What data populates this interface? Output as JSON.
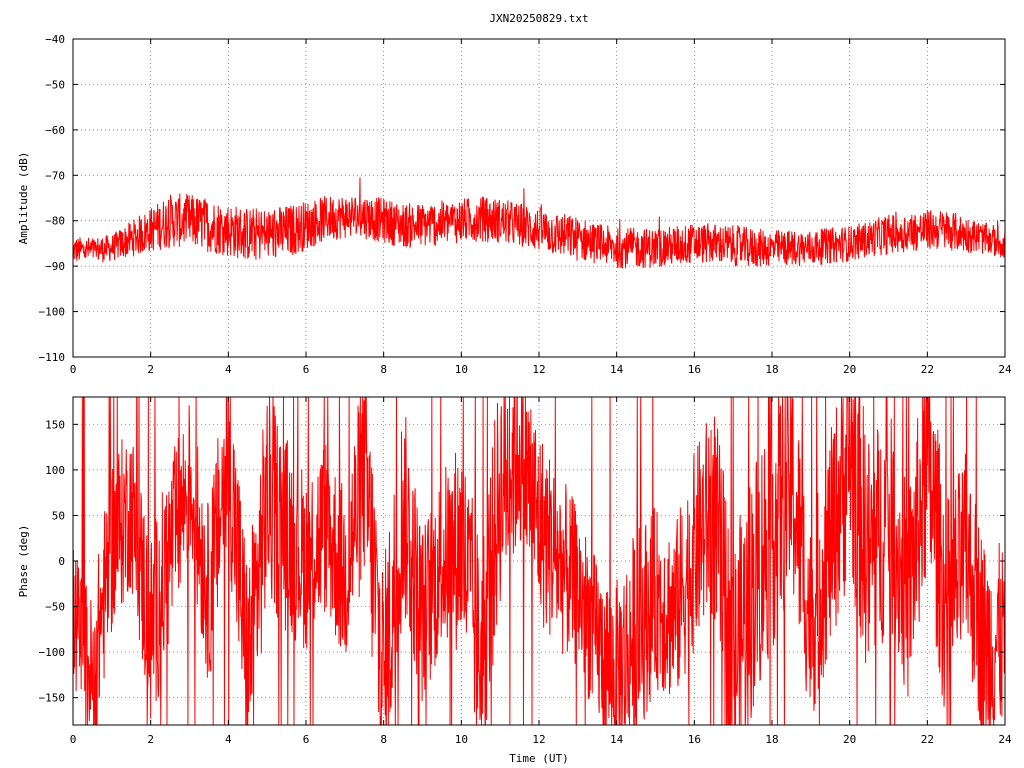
{
  "chart_data": [
    {
      "type": "line",
      "title": "JXN20250829.txt",
      "xlabel": "",
      "ylabel": "Amplitude (dB)",
      "xlim": [
        0,
        24
      ],
      "ylim": [
        -110,
        -40
      ],
      "x_ticks": [
        "0",
        "2",
        "4",
        "6",
        "8",
        "10",
        "12",
        "14",
        "16",
        "18",
        "20",
        "22",
        "24"
      ],
      "y_ticks": [
        "-40",
        "-50",
        "-60",
        "-70",
        "-80",
        "-90",
        "-100",
        "-110"
      ],
      "grid": true,
      "color": "#ff0000",
      "series": [
        {
          "x": [
            0,
            0.5,
            1,
            1.5,
            2,
            2.5,
            3,
            3.5,
            4,
            4.5,
            5,
            5.5,
            6,
            6.5,
            7,
            7.5,
            8,
            8.5,
            9,
            9.5,
            10,
            10.5,
            11,
            11.5,
            12,
            12.5,
            13,
            13.5,
            14,
            14.5,
            15,
            15.5,
            16,
            16.5,
            17,
            17.5,
            18,
            18.5,
            19,
            19.5,
            20,
            20.5,
            21,
            21.5,
            22,
            22.5,
            23,
            23.5,
            24
          ],
          "y": [
            -86.5,
            -86.5,
            -86,
            -84,
            -82,
            -80,
            -80,
            -81,
            -82,
            -83,
            -83,
            -82.5,
            -81,
            -79.5,
            -79,
            -79,
            -80,
            -81,
            -81,
            -80.5,
            -80,
            -79.5,
            -80,
            -81,
            -82,
            -83,
            -84,
            -85,
            -86,
            -86,
            -86,
            -85.5,
            -85,
            -85,
            -85.5,
            -86,
            -86,
            -86,
            -86,
            -85.5,
            -85,
            -84,
            -83,
            -82.5,
            -82,
            -82,
            -83,
            -84,
            -85
          ],
          "spread": [
            3,
            3,
            3,
            4,
            5,
            6,
            6,
            6,
            6,
            6,
            6,
            6,
            5.5,
            5,
            5,
            5,
            5,
            5,
            5,
            5,
            5,
            5,
            5,
            5,
            5,
            5,
            5,
            4.5,
            4.5,
            4.5,
            4.5,
            4.5,
            4.5,
            4.5,
            4.5,
            4.5,
            4,
            4,
            4,
            4,
            4,
            4,
            4.5,
            4.5,
            4.5,
            4.5,
            4,
            3.5,
            3.5
          ]
        }
      ]
    },
    {
      "type": "line",
      "title": "",
      "xlabel": "Time (UT)",
      "ylabel": "Phase (deg)",
      "xlim": [
        0,
        24
      ],
      "ylim": [
        -180,
        180
      ],
      "x_ticks": [
        "0",
        "2",
        "4",
        "6",
        "8",
        "10",
        "12",
        "14",
        "16",
        "18",
        "20",
        "22",
        "24"
      ],
      "y_ticks": [
        "150",
        "100",
        "50",
        "0",
        "-50",
        "-100",
        "-150"
      ],
      "grid": true,
      "color": "#ff0000",
      "series": [
        {
          "x": [
            0,
            0.5,
            1,
            1.5,
            2,
            2.5,
            3,
            3.5,
            4,
            4.5,
            5,
            5.5,
            6,
            6.5,
            7,
            7.5,
            8,
            8.5,
            9,
            9.5,
            10,
            10.5,
            11,
            11.5,
            12,
            12.5,
            13,
            13.5,
            14,
            14.5,
            15,
            15.5,
            16,
            16.5,
            17,
            17.5,
            18,
            18.5,
            19,
            19.5,
            20,
            20.5,
            21,
            21.5,
            22,
            22.5,
            23,
            23.5,
            24
          ],
          "y": [
            -60,
            -130,
            20,
            60,
            -80,
            10,
            90,
            -40,
            120,
            -120,
            70,
            30,
            0,
            40,
            -20,
            100,
            -140,
            60,
            -60,
            0,
            20,
            -110,
            80,
            130,
            40,
            0,
            -30,
            -90,
            -130,
            -80,
            -40,
            -60,
            10,
            60,
            -120,
            -30,
            40,
            90,
            -70,
            20,
            120,
            0,
            50,
            -40,
            110,
            -60,
            10,
            -100,
            -80
          ],
          "spread": [
            80,
            90,
            100,
            90,
            110,
            100,
            90,
            100,
            110,
            120,
            120,
            110,
            100,
            100,
            100,
            120,
            140,
            120,
            100,
            100,
            120,
            130,
            130,
            120,
            110,
            100,
            90,
            90,
            110,
            120,
            100,
            100,
            110,
            120,
            140,
            140,
            140,
            130,
            110,
            120,
            140,
            140,
            120,
            120,
            130,
            130,
            110,
            120,
            100
          ]
        }
      ]
    }
  ]
}
